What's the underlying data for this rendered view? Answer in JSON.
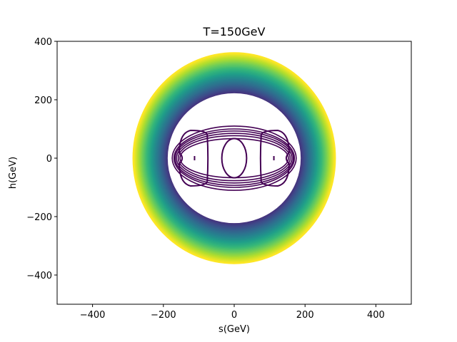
{
  "chart_data": {
    "type": "contour",
    "title": "T=150GeV",
    "xlabel": "s(GeV)",
    "ylabel": "h(GeV)",
    "xlim": [
      -500,
      500
    ],
    "ylim": [
      -500,
      400
    ],
    "xticks": [
      -400,
      -200,
      0,
      200,
      400
    ],
    "xtick_labels": [
      "−400",
      "−200",
      "0",
      "200",
      "400"
    ],
    "yticks": [
      -400,
      -200,
      0,
      200,
      400
    ],
    "ytick_labels": [
      "−400",
      "−200",
      "0",
      "200",
      "400"
    ],
    "colormap": "viridis",
    "grid": false,
    "outer_boundary": {
      "s_radius": 285,
      "h_radius": 360
    },
    "outer_band_inner": {
      "s_radius": 190,
      "h_radius": 225
    },
    "inner_loops": [
      {
        "s_radius": 175,
        "h_radius": 110
      },
      {
        "s_radius": 170,
        "h_radius": 100
      },
      {
        "s_radius": 167,
        "h_radius": 93
      },
      {
        "s_radius": 163,
        "h_radius": 85
      },
      {
        "s_radius": 158,
        "h_radius": 77
      },
      {
        "s_radius": 153,
        "h_radius": 67
      }
    ],
    "minima": [
      {
        "s": -110,
        "h": 0,
        "s_radius": 45,
        "h_radius": 95
      },
      {
        "s": 110,
        "h": 0,
        "s_radius": 45,
        "h_radius": 95
      }
    ],
    "central_loop": {
      "s": 0,
      "h": 0,
      "s_radius": 35,
      "h_radius": 67
    },
    "minimum_points": [
      {
        "s": -112,
        "h": 0
      },
      {
        "s": 112,
        "h": 0
      }
    ],
    "line_color": "#440154"
  }
}
